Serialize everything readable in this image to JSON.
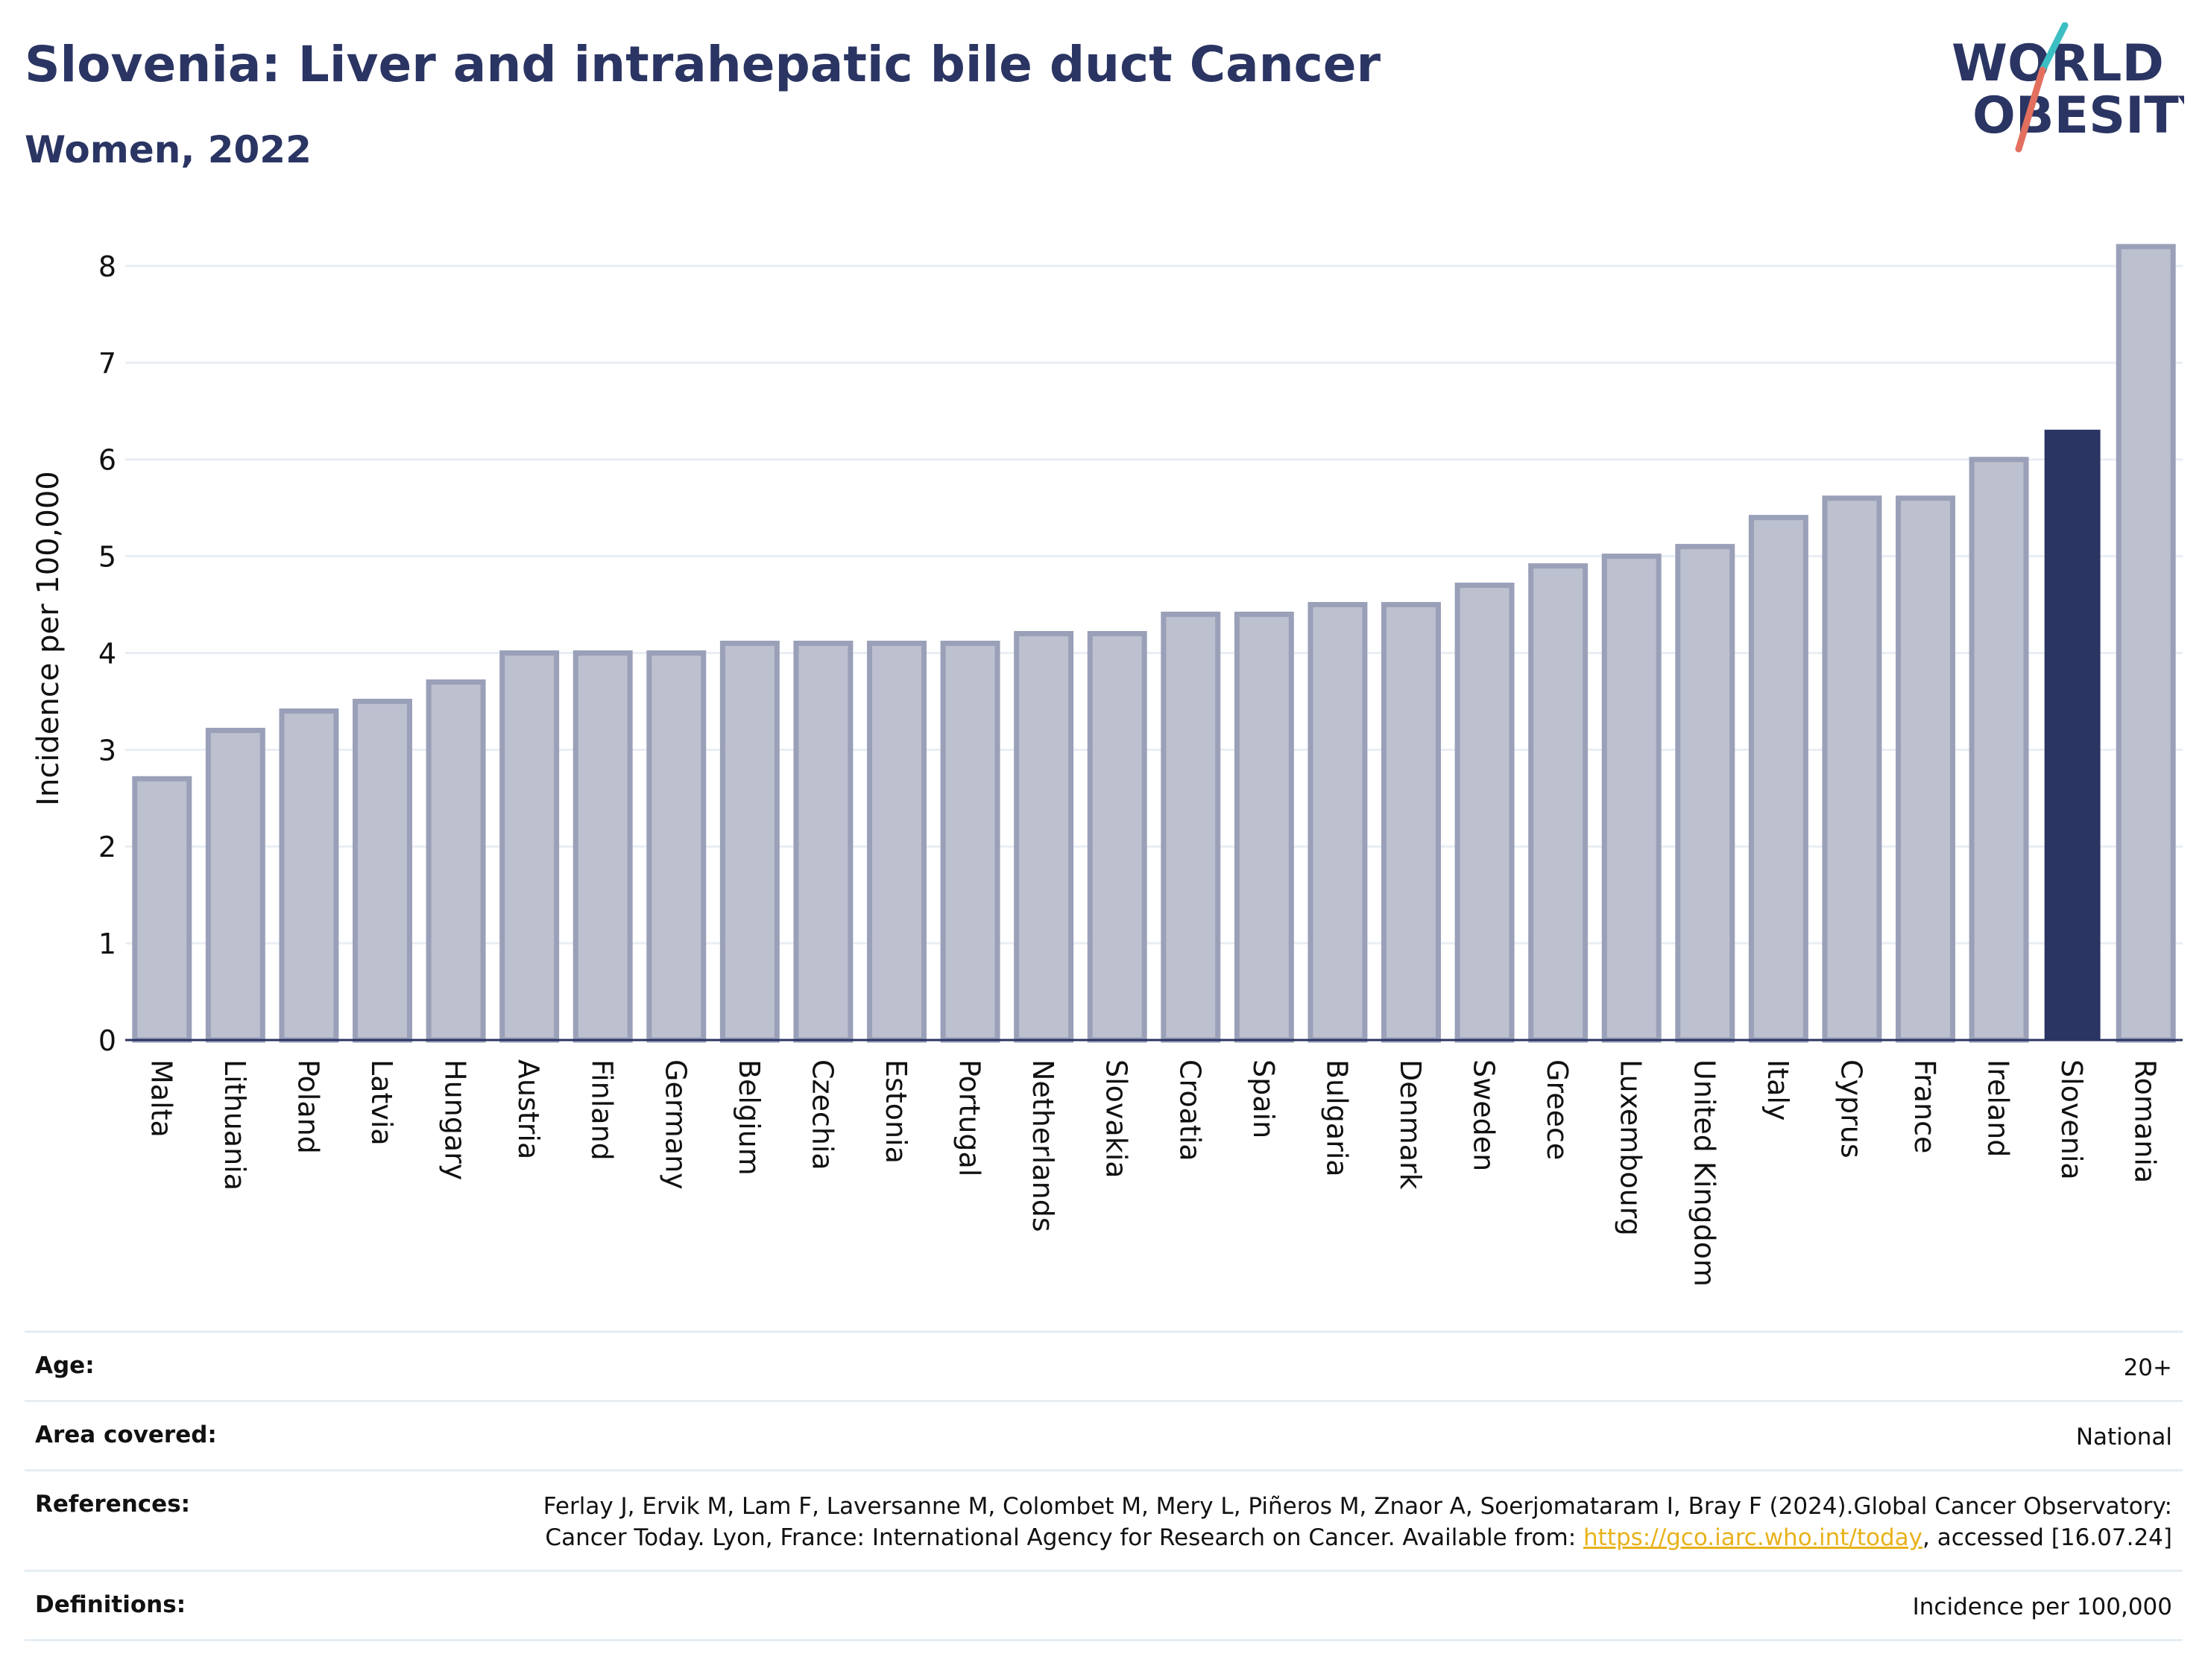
{
  "header": {
    "title": "Slovenia: Liver and intrahepatic bile duct Cancer",
    "subtitle": "Women, 2022"
  },
  "logo": {
    "line1": "WORLD",
    "line2": "OBESITY"
  },
  "colors": {
    "highlight": "#2b3563",
    "bar_fill": "#bcc0cf",
    "bar_stroke": "#9aa0b8",
    "grid": "#e9eef4",
    "logo_text": "#2b3563",
    "logo_slash_top": "#3cbfc3",
    "logo_slash_bottom": "#e3705f"
  },
  "chart_data": {
    "type": "bar",
    "title": "Slovenia: Liver and intrahepatic bile duct Cancer",
    "subtitle": "Women, 2022",
    "xlabel": "",
    "ylabel": "Incidence per 100,000",
    "ylim": [
      0,
      8.3
    ],
    "yticks": [
      0,
      1,
      2,
      3,
      4,
      5,
      6,
      7,
      8
    ],
    "grid": true,
    "highlight": "Slovenia",
    "categories": [
      "Malta",
      "Lithuania",
      "Poland",
      "Latvia",
      "Hungary",
      "Austria",
      "Finland",
      "Germany",
      "Belgium",
      "Czechia",
      "Estonia",
      "Portugal",
      "Netherlands",
      "Slovakia",
      "Croatia",
      "Spain",
      "Bulgaria",
      "Denmark",
      "Sweden",
      "Greece",
      "Luxembourg",
      "United Kingdom",
      "Italy",
      "Cyprus",
      "France",
      "Ireland",
      "Slovenia",
      "Romania"
    ],
    "values": [
      2.7,
      3.2,
      3.4,
      3.5,
      3.7,
      4.0,
      4.0,
      4.0,
      4.1,
      4.1,
      4.1,
      4.1,
      4.2,
      4.2,
      4.4,
      4.4,
      4.5,
      4.5,
      4.7,
      4.9,
      5.0,
      5.1,
      5.4,
      5.6,
      5.6,
      6.0,
      6.3,
      8.2
    ]
  },
  "meta": {
    "age_label": "Age:",
    "age_value": "20+",
    "area_label": "Area covered:",
    "area_value": "National",
    "references_label": "References:",
    "references_text": "Ferlay J, Ervik M, Lam F, Laversanne M, Colombet M, Mery L, Piñeros M, Znaor A, Soerjomataram I, Bray F (2024).Global Cancer Observatory: Cancer Today. Lyon, France: International Agency for Research on Cancer. Available from: ",
    "references_link": "https://gco.iarc.who.int/today",
    "references_suffix": ", accessed [16.07.24]",
    "definitions_label": "Definitions:",
    "definitions_value": "Incidence per 100,000"
  }
}
